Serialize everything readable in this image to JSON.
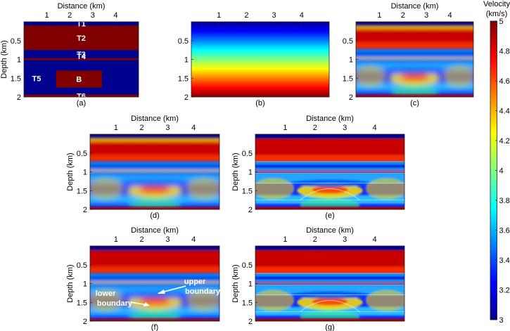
{
  "colorbar": {
    "title_line1": "Velocity",
    "title_line2": "(km/s)",
    "min": 3,
    "max": 5,
    "ticks": [
      "3",
      "3.2",
      "3.4",
      "3.6",
      "3.8",
      "4",
      "4.2",
      "4.4",
      "4.6",
      "4.8",
      "5"
    ]
  },
  "chart_data": [
    {
      "id": "a",
      "type": "heatmap",
      "caption": "(a)",
      "xlabel": "Distance (km)",
      "ylabel": "Depth (km)",
      "xticks": [
        "1",
        "2",
        "3",
        "4"
      ],
      "yticks": [
        "0.5",
        "1",
        "1.5",
        "2"
      ],
      "xlim": [
        0,
        5
      ],
      "ylim": [
        0,
        2
      ],
      "description": "layered model",
      "layers": [
        {
          "name": "T1",
          "top_km": 0.0,
          "bottom_km": 0.1,
          "velocity": 3.0
        },
        {
          "name": "T2",
          "top_km": 0.1,
          "bottom_km": 0.75,
          "velocity": 5.0
        },
        {
          "name": "T3",
          "top_km": 0.75,
          "bottom_km": 0.97,
          "velocity": 3.0
        },
        {
          "name": "T4",
          "top_km": 0.97,
          "bottom_km": 1.02,
          "velocity": 5.0
        },
        {
          "name": "T5",
          "top_km": 1.02,
          "bottom_km": 1.94,
          "velocity": 3.0
        },
        {
          "name": "T6",
          "top_km": 1.94,
          "bottom_km": 2.0,
          "velocity": 5.0
        }
      ],
      "body": {
        "name": "B",
        "x_range_km": [
          1.4,
          3.4
        ],
        "depth_range_km": [
          1.3,
          1.75
        ],
        "velocity": 5.0
      },
      "labels": [
        "T1",
        "T2",
        "T3",
        "T4",
        "T5",
        "B",
        "T6"
      ]
    },
    {
      "id": "b",
      "type": "heatmap",
      "caption": "(b)",
      "xlabel": "",
      "ylabel": "",
      "xticks": [
        "1",
        "2",
        "3",
        "4"
      ],
      "yticks": [
        "0.5",
        "1",
        "1.5",
        "2"
      ],
      "xlim": [
        0,
        5
      ],
      "ylim": [
        0,
        2
      ],
      "gradient": {
        "top_velocity": 3.0,
        "bottom_velocity": 5.0
      }
    },
    {
      "id": "c",
      "type": "heatmap",
      "caption": "(c)",
      "xlabel": "Distance (km)",
      "ylabel": "",
      "xticks": [
        "1",
        "2",
        "3",
        "4"
      ],
      "yticks": [
        "0.5",
        "1",
        "1.5",
        "2"
      ],
      "xlim": [
        0,
        5
      ],
      "ylim": [
        0,
        2
      ]
    },
    {
      "id": "d",
      "type": "heatmap",
      "caption": "(d)",
      "xlabel": "Distance (km)",
      "ylabel": "Depth (km)",
      "xticks": [
        "1",
        "2",
        "3",
        "4"
      ],
      "yticks": [
        "0.5",
        "1",
        "1.5",
        "2"
      ],
      "xlim": [
        0,
        5
      ],
      "ylim": [
        0,
        2
      ]
    },
    {
      "id": "e",
      "type": "heatmap",
      "caption": "(e)",
      "xlabel": "Distance (km)",
      "ylabel": "Depth (km)",
      "xticks": [
        "1",
        "2",
        "3",
        "4"
      ],
      "yticks": [
        "0.5",
        "1",
        "1.5",
        "2"
      ],
      "xlim": [
        0,
        5
      ],
      "ylim": [
        0,
        2
      ]
    },
    {
      "id": "f",
      "type": "heatmap",
      "caption": "(f)",
      "xlabel": "Distance (km)",
      "ylabel": "Depth (km)",
      "xticks": [
        "1",
        "2",
        "3",
        "4"
      ],
      "yticks": [
        "0.5",
        "1",
        "1.5",
        "2"
      ],
      "xlim": [
        0,
        5
      ],
      "ylim": [
        0,
        2
      ],
      "annotations": {
        "upper": "upper",
        "boundary1": "boundary",
        "lower": "lower",
        "boundary2": "boundary"
      }
    },
    {
      "id": "g",
      "type": "heatmap",
      "caption": "(g)",
      "xlabel": "Distance (km)",
      "ylabel": "Depth (km)",
      "xticks": [
        "1",
        "2",
        "3",
        "4"
      ],
      "yticks": [
        "0.5",
        "1",
        "1.5",
        "2"
      ],
      "xlim": [
        0,
        5
      ],
      "ylim": [
        0,
        2
      ]
    }
  ]
}
